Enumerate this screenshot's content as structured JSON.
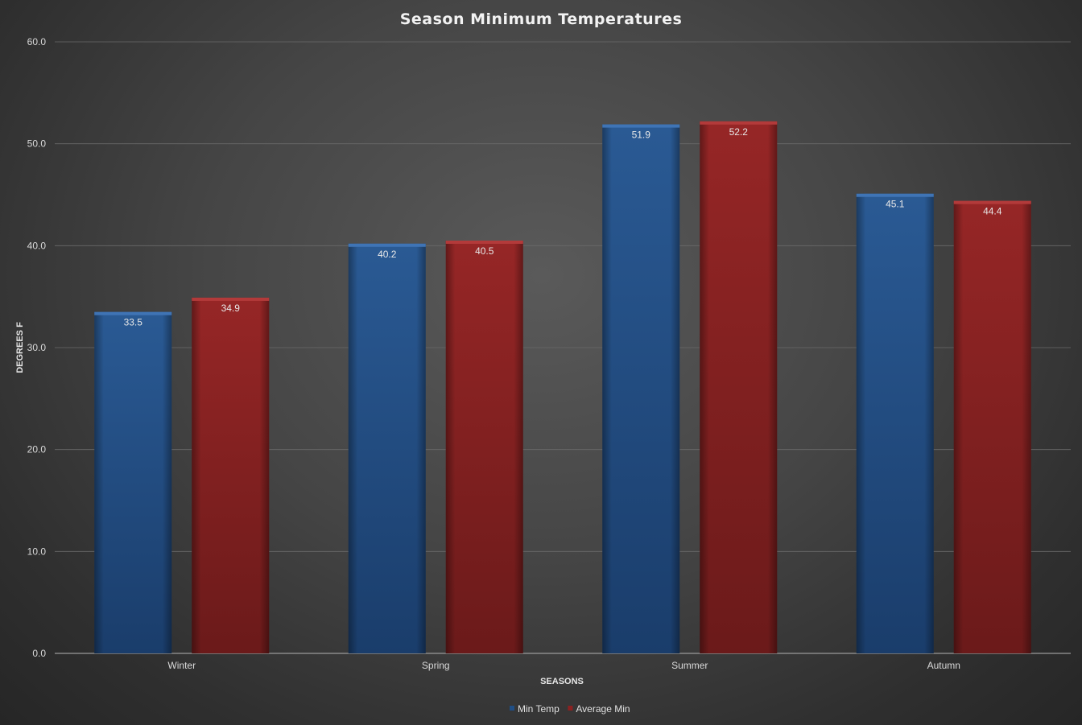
{
  "chart_data": {
    "type": "bar",
    "title": "Season Minimum Temperatures",
    "xlabel": "SEASONS",
    "ylabel": "DEGREES F",
    "categories": [
      "Winter",
      "Spring",
      "Summer",
      "Autumn"
    ],
    "series": [
      {
        "name": "Min Temp",
        "values": [
          33.5,
          40.2,
          51.9,
          45.1
        ],
        "color": "#1f4e85"
      },
      {
        "name": "Average Min",
        "values": [
          34.9,
          40.5,
          52.2,
          44.4
        ],
        "color": "#8b2121"
      }
    ],
    "ylim": [
      0,
      60
    ],
    "yticks": [
      "0.0",
      "10.0",
      "20.0",
      "30.0",
      "40.0",
      "50.0",
      "60.0"
    ],
    "grid": true,
    "legend_position": "bottom",
    "data_labels": true
  }
}
